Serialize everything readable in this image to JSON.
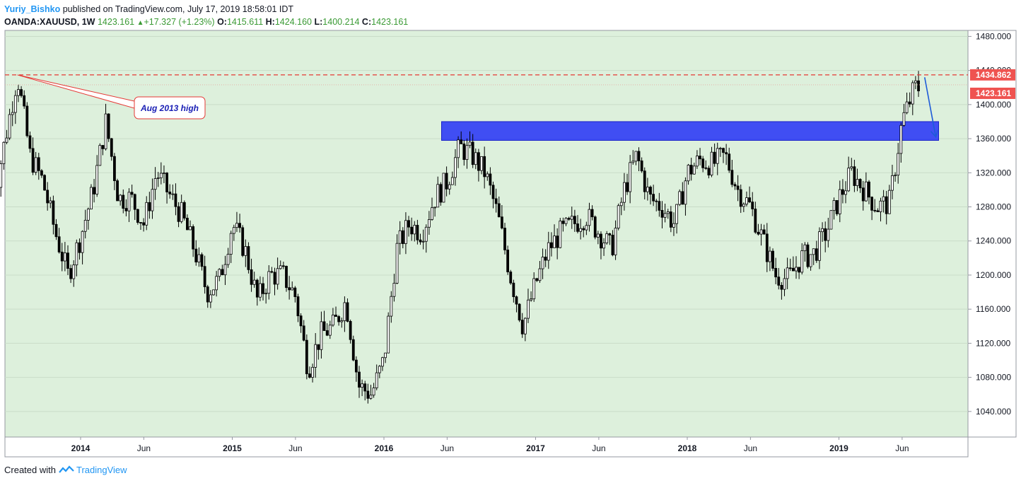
{
  "header": {
    "author": "Yuriy_Bishko",
    "published": "published on TradingView.com, July 17, 2019 18:58:01 IDT",
    "symbol": "OANDA:XAUUSD, 1W",
    "last": "1423.161",
    "change": "+17.327 (+1.23%)",
    "o_label": "O:",
    "o": "1415.611",
    "h_label": "H:",
    "h": "1424.160",
    "l_label": "L:",
    "l": "1400.214",
    "c_label": "C:",
    "c": "1423.161"
  },
  "footer": {
    "created": "Created with",
    "brand": "TradingView"
  },
  "colors": {
    "background": "#ddf0dc",
    "candle_up": "#ffffff",
    "candle_down": "#000000",
    "resistance_line": "#e53935",
    "zone": "#2f3cf5",
    "last_price_label": "#ef5350",
    "arrow": "#1e5bd8",
    "annotation_text": "#1a1fb5"
  },
  "chart_data": {
    "type": "candlestick",
    "symbol": "OANDA:XAUUSD",
    "interval": "1W",
    "ylim": [
      1010,
      1487
    ],
    "y_ticks": [
      "1480.000",
      "1440.000",
      "1400.000",
      "1360.000",
      "1320.000",
      "1280.000",
      "1240.000",
      "1200.000",
      "1160.000",
      "1120.000",
      "1080.000",
      "1040.000"
    ],
    "x_ticks": [
      "2014",
      "Jun",
      "2015",
      "Jun",
      "2016",
      "Jun",
      "2017",
      "Jun",
      "2018",
      "Jun",
      "2019",
      "Jun"
    ],
    "price_labels": {
      "resistance": "1434.862",
      "last": "1423.161"
    },
    "resistance_level": 1434.862,
    "zone": {
      "low": 1358,
      "high": 1380,
      "start": "2016-05",
      "end": "2019-09"
    },
    "annotation": {
      "text": "Aug 2013 high",
      "anchor_date": "2013-08",
      "anchor_price": 1434.8
    },
    "arrow": {
      "from": [
        "2019-07",
        1432
      ],
      "to": [
        "2019-09",
        1362
      ]
    },
    "path_points": [
      [
        "2013-06",
        1280
      ],
      [
        "2013-08",
        1434
      ],
      [
        "2013-09",
        1340
      ],
      [
        "2013-10",
        1310
      ],
      [
        "2013-11",
        1250
      ],
      [
        "2013-12",
        1200
      ],
      [
        "2014-01",
        1245
      ],
      [
        "2014-02",
        1300
      ],
      [
        "2014-03",
        1380
      ],
      [
        "2014-04",
        1290
      ],
      [
        "2014-05",
        1290
      ],
      [
        "2014-06",
        1260
      ],
      [
        "2014-07",
        1320
      ],
      [
        "2014-08",
        1295
      ],
      [
        "2014-09",
        1270
      ],
      [
        "2014-10",
        1230
      ],
      [
        "2014-11",
        1180
      ],
      [
        "2014-12",
        1195
      ],
      [
        "2015-01",
        1260
      ],
      [
        "2015-02",
        1230
      ],
      [
        "2015-03",
        1170
      ],
      [
        "2015-04",
        1200
      ],
      [
        "2015-05",
        1200
      ],
      [
        "2015-06",
        1175
      ],
      [
        "2015-07",
        1090
      ],
      [
        "2015-08",
        1130
      ],
      [
        "2015-09",
        1140
      ],
      [
        "2015-10",
        1170
      ],
      [
        "2015-11",
        1070
      ],
      [
        "2015-12",
        1060
      ],
      [
        "2016-01",
        1100
      ],
      [
        "2016-02",
        1230
      ],
      [
        "2016-03",
        1260
      ],
      [
        "2016-04",
        1250
      ],
      [
        "2016-05",
        1290
      ],
      [
        "2016-06",
        1310
      ],
      [
        "2016-07",
        1350
      ],
      [
        "2016-08",
        1340
      ],
      [
        "2016-09",
        1320
      ],
      [
        "2016-10",
        1270
      ],
      [
        "2016-11",
        1200
      ],
      [
        "2016-12",
        1140
      ],
      [
        "2017-01",
        1190
      ],
      [
        "2017-02",
        1230
      ],
      [
        "2017-03",
        1250
      ],
      [
        "2017-04",
        1260
      ],
      [
        "2017-05",
        1270
      ],
      [
        "2017-06",
        1250
      ],
      [
        "2017-07",
        1230
      ],
      [
        "2017-08",
        1300
      ],
      [
        "2017-09",
        1340
      ],
      [
        "2017-10",
        1290
      ],
      [
        "2017-11",
        1280
      ],
      [
        "2017-12",
        1260
      ],
      [
        "2018-01",
        1320
      ],
      [
        "2018-02",
        1335
      ],
      [
        "2018-03",
        1330
      ],
      [
        "2018-04",
        1340
      ],
      [
        "2018-05",
        1300
      ],
      [
        "2018-06",
        1280
      ],
      [
        "2018-07",
        1240
      ],
      [
        "2018-08",
        1200
      ],
      [
        "2018-09",
        1195
      ],
      [
        "2018-10",
        1220
      ],
      [
        "2018-11",
        1225
      ],
      [
        "2018-12",
        1250
      ],
      [
        "2019-01",
        1290
      ],
      [
        "2019-02",
        1320
      ],
      [
        "2019-03",
        1300
      ],
      [
        "2019-04",
        1280
      ],
      [
        "2019-05",
        1285
      ],
      [
        "2019-06",
        1380
      ],
      [
        "2019-07",
        1420
      ]
    ]
  }
}
